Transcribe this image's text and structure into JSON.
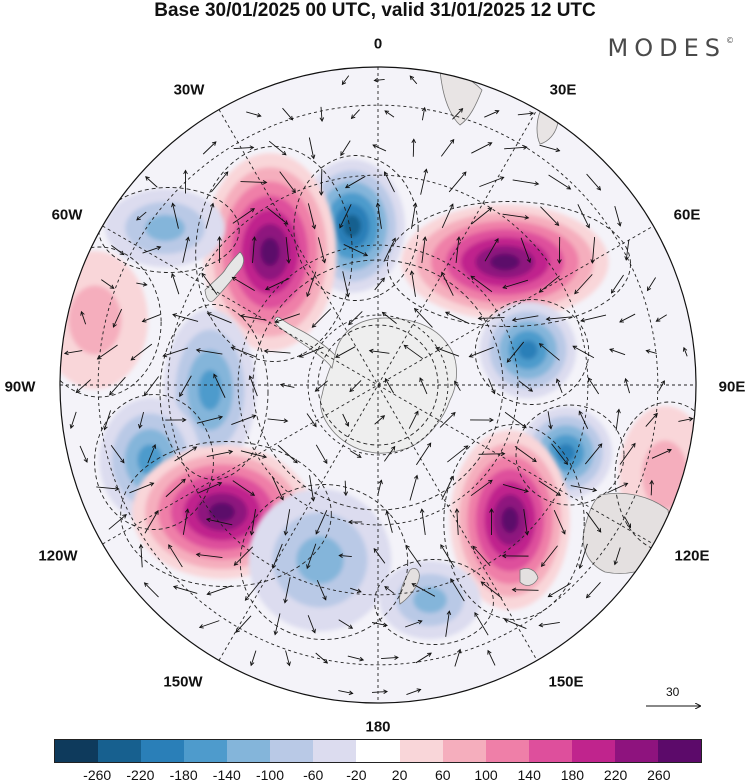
{
  "title": "Base 30/01/2025 00 UTC, valid 31/01/2025 12 UTC",
  "brand": {
    "name": "MODES",
    "mark": "©"
  },
  "longitude_labels": {
    "lon_0": "0",
    "lon_30e": "30E",
    "lon_60e": "60E",
    "lon_90e": "90E",
    "lon_120e": "120E",
    "lon_150e": "150E",
    "lon_180": "180",
    "lon_150w": "150W",
    "lon_120w": "120W",
    "lon_90w": "90W",
    "lon_60w": "60W",
    "lon_30w": "30W"
  },
  "colorbar": {
    "colors": [
      "#0e3a5c",
      "#17608f",
      "#2a7fb8",
      "#4e9bcc",
      "#84b5da",
      "#b9c9e6",
      "#dcdcef",
      "#ffffff",
      "#f9d6d9",
      "#f5aebd",
      "#ef7fa8",
      "#de4f9c",
      "#c0248d",
      "#8e137e",
      "#5c0a6a"
    ],
    "tick_labels": [
      "-260",
      "-220",
      "-180",
      "-140",
      "-100",
      "-60",
      "-20",
      "20",
      "60",
      "100",
      "140",
      "180",
      "220",
      "260"
    ]
  },
  "vector_scale_label": "30",
  "anomaly_cores": [
    {
      "name": "neg-center-0",
      "sign": -1,
      "level": 200
    },
    {
      "name": "pos-center-30w",
      "sign": 1,
      "level": 260
    },
    {
      "name": "neg-center-60w",
      "sign": -1,
      "level": 100
    },
    {
      "name": "pos-center-60e",
      "sign": 1,
      "level": 260
    },
    {
      "name": "neg-center-80e",
      "sign": -1,
      "level": 160
    },
    {
      "name": "neg-center-100e",
      "sign": -1,
      "level": 180
    },
    {
      "name": "pos-center-140e",
      "sign": 1,
      "level": 260
    },
    {
      "name": "neg-center-90w",
      "sign": -1,
      "level": 140
    },
    {
      "name": "neg-center-110w",
      "sign": -1,
      "level": 120
    },
    {
      "name": "pos-center-130w",
      "sign": 1,
      "level": 260
    },
    {
      "name": "neg-center-170e",
      "sign": -1,
      "level": 100
    },
    {
      "name": "neg-center-160w",
      "sign": -1,
      "level": 80
    },
    {
      "name": "pos-center-75w",
      "sign": 1,
      "level": 60
    },
    {
      "name": "pos-center-outer-100e",
      "sign": 1,
      "level": 60
    }
  ]
}
